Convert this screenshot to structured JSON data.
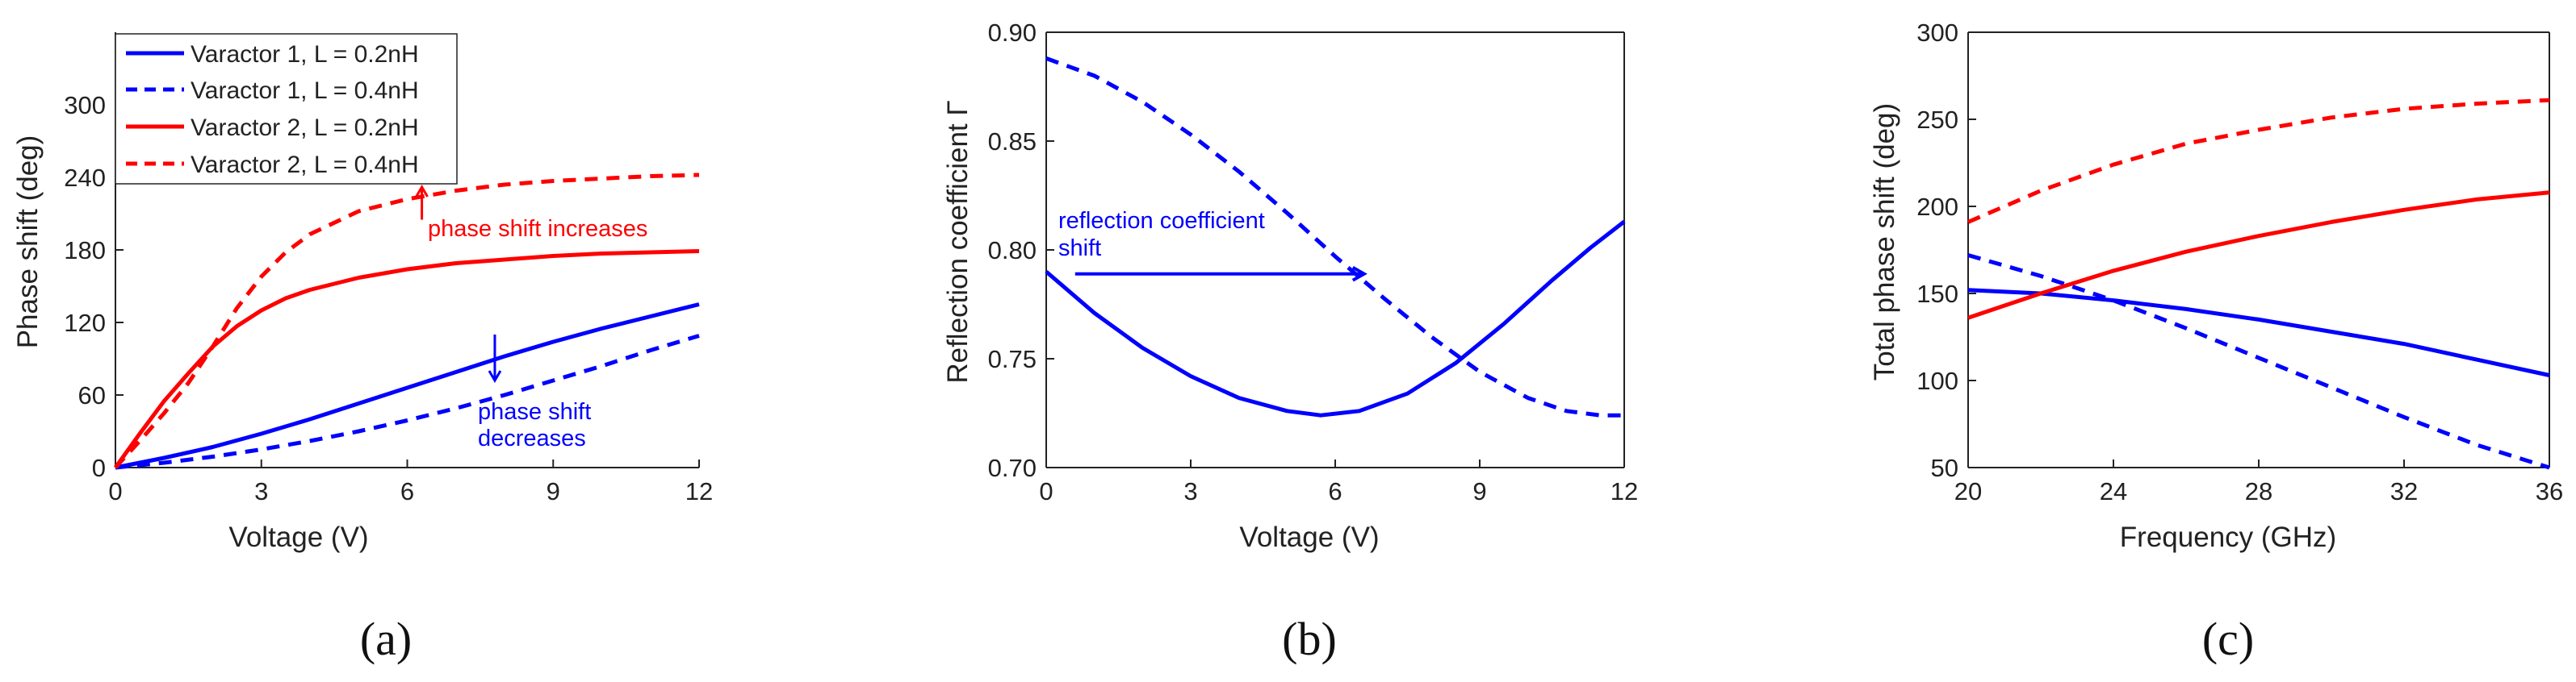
{
  "colors": {
    "blue": "#0000ff",
    "red": "#ff0000",
    "axis": "#222222"
  },
  "chart_data": [
    {
      "type": "line",
      "panel_label": "(a)",
      "xlabel": "Voltage (V)",
      "ylabel": "Phase shift (deg)",
      "xlim": [
        0,
        12
      ],
      "ylim": [
        0,
        360
      ],
      "xticks": [
        0,
        3,
        6,
        9,
        12
      ],
      "yticks": [
        0,
        60,
        120,
        180,
        240,
        300
      ],
      "legend_position": "top-left",
      "series": [
        {
          "name": "Varactor 1, L = 0.2nH",
          "color": "blue",
          "dash": "solid",
          "x": [
            0,
            1,
            2,
            3,
            4,
            5,
            6,
            7,
            8,
            9,
            10,
            11,
            12
          ],
          "y": [
            0,
            8,
            17,
            28,
            40,
            53,
            66,
            79,
            92,
            104,
            115,
            125,
            135
          ]
        },
        {
          "name": "Varactor 1, L = 0.4nH",
          "color": "blue",
          "dash": "dashed",
          "x": [
            0,
            1,
            2,
            3,
            4,
            5,
            6,
            7,
            8,
            9,
            10,
            11,
            12
          ],
          "y": [
            0,
            4,
            9,
            15,
            22,
            30,
            39,
            49,
            60,
            72,
            84,
            97,
            109
          ]
        },
        {
          "name": "Varactor 2, L = 0.2nH",
          "color": "red",
          "dash": "solid",
          "x": [
            0,
            0.5,
            1,
            1.5,
            2,
            2.5,
            3,
            3.5,
            4,
            5,
            6,
            7,
            8,
            9,
            10,
            11,
            12
          ],
          "y": [
            0,
            28,
            55,
            78,
            100,
            117,
            130,
            140,
            147,
            157,
            164,
            169,
            172,
            175,
            177,
            178,
            179
          ]
        },
        {
          "name": "Varactor 2, L = 0.4nH",
          "color": "red",
          "dash": "dashed",
          "x": [
            0,
            0.5,
            1,
            1.5,
            2,
            2.5,
            3,
            3.5,
            4,
            5,
            6,
            7,
            8,
            9,
            10,
            11,
            12
          ],
          "y": [
            0,
            22,
            45,
            70,
            100,
            132,
            158,
            178,
            193,
            212,
            222,
            229,
            234,
            237,
            239,
            241,
            242
          ]
        }
      ],
      "annotations": [
        {
          "text": "phase shift increases",
          "color": "red",
          "arrow": "up",
          "x": 6.3,
          "y_from": 205,
          "y_to": 232
        },
        {
          "text": [
            "phase shift",
            "decreases"
          ],
          "color": "blue",
          "arrow": "down",
          "x": 7.8,
          "y_from": 110,
          "y_to": 72
        }
      ]
    },
    {
      "type": "line",
      "panel_label": "(b)",
      "xlabel": "Voltage (V)",
      "ylabel": "Reflection coefficient Γ",
      "xlim": [
        0,
        12
      ],
      "ylim": [
        0.7,
        0.9
      ],
      "xticks": [
        0,
        3,
        6,
        9,
        12
      ],
      "yticks": [
        "0.70",
        "0.75",
        "0.80",
        "0.85",
        "0.90"
      ],
      "series": [
        {
          "name": "solid",
          "color": "blue",
          "dash": "solid",
          "x": [
            0,
            1,
            2,
            3,
            4,
            5,
            5.7,
            6.5,
            7.5,
            8.5,
            9.5,
            10.5,
            11.3,
            12
          ],
          "y": [
            0.79,
            0.771,
            0.755,
            0.742,
            0.732,
            0.726,
            0.724,
            0.726,
            0.734,
            0.748,
            0.766,
            0.786,
            0.801,
            0.813
          ]
        },
        {
          "name": "dashed",
          "color": "blue",
          "dash": "dashed",
          "x": [
            0,
            1,
            2,
            3,
            4,
            5,
            6,
            7,
            8,
            9,
            10,
            10.8,
            11.5,
            12
          ],
          "y": [
            0.888,
            0.88,
            0.868,
            0.853,
            0.836,
            0.817,
            0.797,
            0.778,
            0.76,
            0.744,
            0.732,
            0.726,
            0.724,
            0.724
          ]
        }
      ],
      "annotations": [
        {
          "text": [
            "reflection coefficient",
            "shift"
          ],
          "color": "blue",
          "arrow": "right",
          "x_from": 0.6,
          "x_to": 6.6,
          "y": 0.789
        }
      ]
    },
    {
      "type": "line",
      "panel_label": "(c)",
      "xlabel": "Frequency (GHz)",
      "ylabel": "Total phase shift (deg)",
      "xlim": [
        20,
        36
      ],
      "ylim": [
        50,
        300
      ],
      "xticks": [
        20,
        24,
        28,
        32,
        36
      ],
      "yticks": [
        50,
        100,
        150,
        200,
        250,
        300
      ],
      "series": [
        {
          "name": "blue solid",
          "color": "blue",
          "dash": "solid",
          "x": [
            20,
            22,
            24,
            26,
            28,
            30,
            32,
            34,
            36
          ],
          "y": [
            152,
            150,
            146,
            141,
            135,
            128,
            121,
            112,
            103
          ]
        },
        {
          "name": "blue dashed",
          "color": "blue",
          "dash": "dashed",
          "x": [
            20,
            22,
            24,
            26,
            28,
            30,
            32,
            34,
            36
          ],
          "y": [
            172,
            160,
            146,
            130,
            113,
            96,
            79,
            63,
            50
          ]
        },
        {
          "name": "red solid",
          "color": "red",
          "dash": "solid",
          "x": [
            20,
            22,
            24,
            26,
            28,
            30,
            32,
            34,
            36
          ],
          "y": [
            136,
            150,
            163,
            174,
            183,
            191,
            198,
            204,
            208
          ]
        },
        {
          "name": "red dashed",
          "color": "red",
          "dash": "dashed",
          "x": [
            20,
            22,
            24,
            26,
            28,
            30,
            32,
            34,
            36
          ],
          "y": [
            191,
            209,
            224,
            236,
            244,
            251,
            256,
            259,
            261
          ]
        }
      ]
    }
  ]
}
